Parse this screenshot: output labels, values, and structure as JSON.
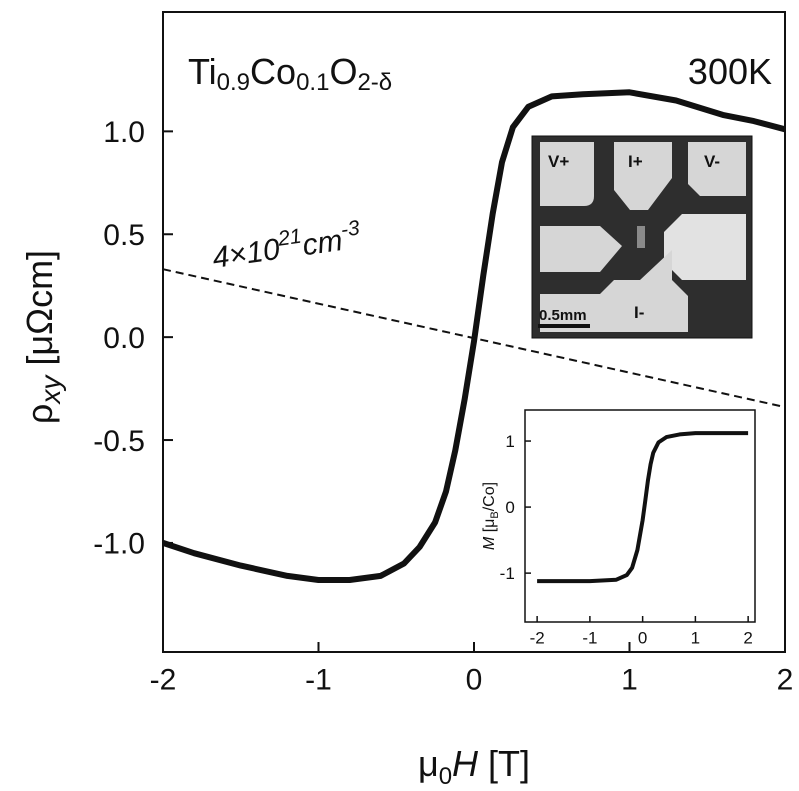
{
  "chart_data": [
    {
      "type": "line",
      "xlim": [
        -2,
        2
      ],
      "ylim": [
        -1.53,
        1.58
      ],
      "xticks": [
        -2,
        -1,
        0,
        1,
        2
      ],
      "yticks": [
        {
          "value": 1.0,
          "label": "1.0"
        },
        {
          "value": 0.5,
          "label": "0.5"
        },
        {
          "value": 0.0,
          "label": "0.0"
        },
        {
          "value": -0.5,
          "label": "-0.5"
        },
        {
          "value": -1.0,
          "label": "-1.0"
        }
      ],
      "xlabel": [
        "μ",
        "0",
        "H",
        " [T]"
      ],
      "ylabel": [
        "ρ",
        "xy",
        " [μΩcm]"
      ],
      "sample_label": [
        "Ti",
        "0.9",
        "Co",
        "0.1",
        "O",
        "2-δ"
      ],
      "temperature": "300K",
      "carrier_label": [
        "4×10",
        "21",
        "cm",
        "-3"
      ],
      "series": [
        {
          "color": "#111111",
          "x": [
            -2,
            -1.8,
            -1.5,
            -1.2,
            -1.0,
            -0.8,
            -0.6,
            -0.45,
            -0.35,
            -0.25,
            -0.18,
            -0.12,
            -0.06,
            0,
            0.06,
            0.12,
            0.18,
            0.25,
            0.35,
            0.5,
            0.7,
            1.0,
            1.3,
            1.6,
            1.8,
            2
          ],
          "values": [
            -1.0,
            -1.05,
            -1.11,
            -1.16,
            -1.18,
            -1.18,
            -1.16,
            -1.1,
            -1.02,
            -0.9,
            -0.75,
            -0.55,
            -0.3,
            -0.02,
            0.3,
            0.6,
            0.85,
            1.02,
            1.12,
            1.17,
            1.18,
            1.19,
            1.15,
            1.08,
            1.05,
            1.01
          ]
        },
        {
          "color": "#111111",
          "dashed": true,
          "x": [
            -2,
            2
          ],
          "values": [
            0.33,
            -0.34
          ]
        }
      ]
    },
    {
      "type": "line",
      "xlim": [
        -2.23,
        2.13
      ],
      "ylim": [
        -1.74,
        1.47
      ],
      "xticks": [
        -2,
        -1,
        0,
        1,
        2
      ],
      "yticks": [
        1,
        0,
        -1
      ],
      "ylabel": [
        "M",
        " [μ",
        "B",
        "/Co]"
      ],
      "series": [
        {
          "color": "#111111",
          "x": [
            -2,
            -1.5,
            -1.0,
            -0.5,
            -0.3,
            -0.2,
            -0.1,
            0,
            0.05,
            0.1,
            0.15,
            0.2,
            0.3,
            0.45,
            0.7,
            1.0,
            1.5,
            2
          ],
          "values": [
            -1.12,
            -1.12,
            -1.12,
            -1.1,
            -1.03,
            -0.92,
            -0.65,
            -0.2,
            0.1,
            0.4,
            0.65,
            0.82,
            0.98,
            1.06,
            1.1,
            1.12,
            1.12,
            1.12
          ]
        }
      ]
    }
  ],
  "photo": {
    "labels": [
      "V+",
      "I+",
      "V-",
      "I-"
    ],
    "scale": "0.5mm"
  }
}
